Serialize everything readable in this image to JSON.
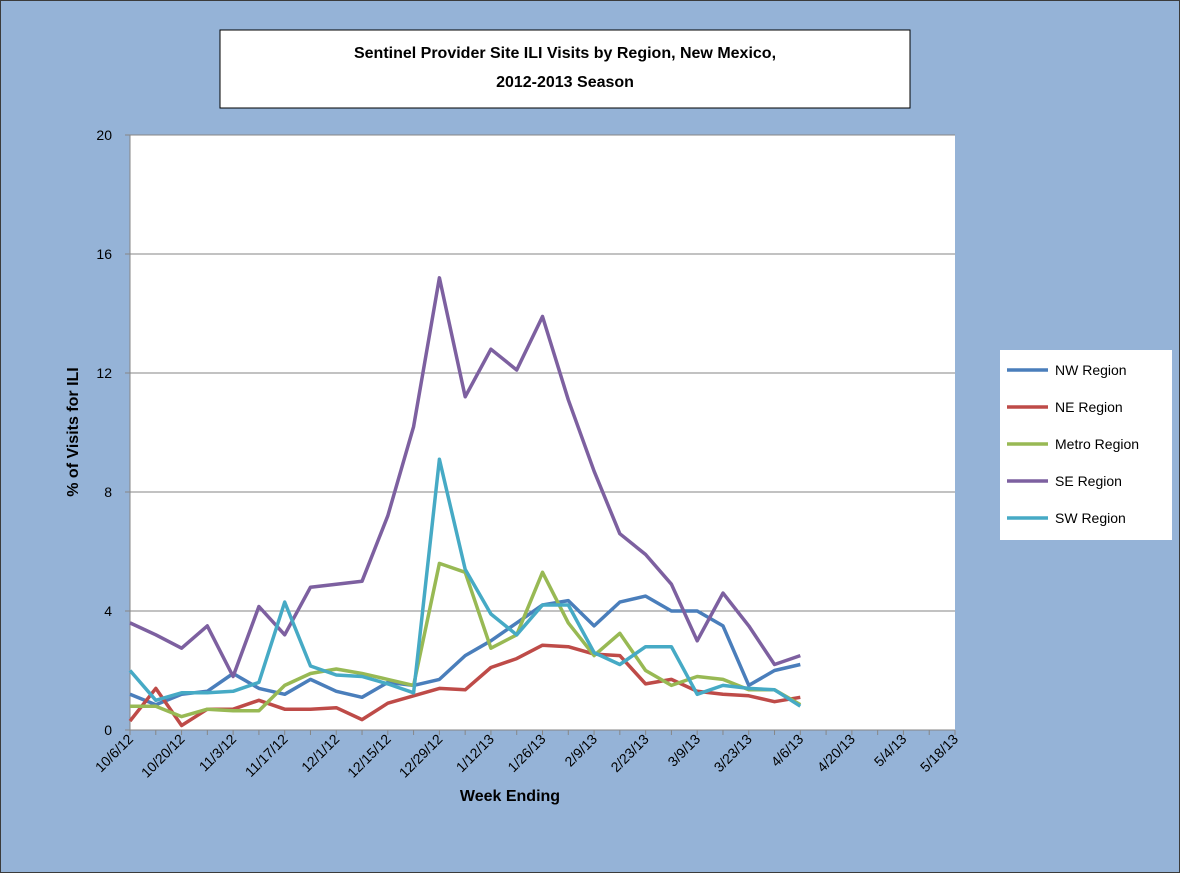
{
  "chart_data": {
    "type": "line",
    "title": "Sentinel Provider Site ILI Visits by Region, New Mexico,",
    "subtitle": "2012-2013 Season",
    "x_label": "Week Ending",
    "y_label": "% of Visits  for ILI",
    "categories": [
      "10/6/12",
      null,
      "10/20/12",
      null,
      "11/3/12",
      null,
      "11/17/12",
      null,
      "12/1/12",
      null,
      "12/15/12",
      null,
      "12/29/12",
      null,
      "1/12/13",
      null,
      "1/26/13",
      null,
      "2/9/13",
      null,
      "2/23/13",
      null,
      "3/9/13",
      null,
      "3/23/13",
      null,
      "4/6/13",
      null,
      "4/20/13",
      null,
      "5/4/13",
      null,
      "5/18/13"
    ],
    "ylim": [
      0,
      20
    ],
    "yticks": [
      0,
      4,
      8,
      12,
      16,
      20
    ],
    "grid": true,
    "legend": "right",
    "series": [
      {
        "name": "NW Region",
        "color": "#4A7EBB",
        "values": [
          1.2,
          0.85,
          1.2,
          1.3,
          1.9,
          1.4,
          1.2,
          1.7,
          1.3,
          1.1,
          1.6,
          1.5,
          1.7,
          2.5,
          3.0,
          3.6,
          4.2,
          4.35,
          3.5,
          4.3,
          4.5,
          4.0,
          4.0,
          3.5,
          1.5,
          2.0,
          2.2,
          null,
          null,
          null,
          null,
          null,
          null
        ]
      },
      {
        "name": "NE Region",
        "color": "#BE4B48",
        "values": [
          0.3,
          1.4,
          0.15,
          0.7,
          0.7,
          1.0,
          0.7,
          0.7,
          0.75,
          0.35,
          0.9,
          1.15,
          1.4,
          1.35,
          2.1,
          2.4,
          2.85,
          2.8,
          2.55,
          2.5,
          1.55,
          1.7,
          1.3,
          1.2,
          1.15,
          0.95,
          1.1,
          null,
          null,
          null,
          null,
          null,
          null
        ]
      },
      {
        "name": "Metro Region",
        "color": "#98B954",
        "values": [
          0.8,
          0.8,
          0.45,
          0.7,
          0.65,
          0.65,
          1.5,
          1.9,
          2.05,
          1.9,
          1.7,
          1.5,
          5.6,
          5.3,
          2.75,
          3.2,
          5.3,
          3.6,
          2.5,
          3.25,
          2.0,
          1.5,
          1.8,
          1.7,
          1.35,
          1.35,
          0.85,
          null,
          null,
          null,
          null,
          null,
          null
        ]
      },
      {
        "name": "SE Region",
        "color": "#7D60A0",
        "values": [
          3.6,
          3.2,
          2.75,
          3.5,
          1.8,
          4.15,
          3.2,
          4.8,
          4.9,
          5.0,
          7.2,
          10.2,
          15.2,
          11.2,
          12.8,
          12.1,
          13.9,
          11.1,
          8.7,
          6.6,
          5.9,
          4.9,
          3.0,
          4.6,
          3.5,
          2.2,
          2.5,
          null,
          null,
          null,
          null,
          null,
          null
        ]
      },
      {
        "name": "SW Region",
        "color": "#46AAC5",
        "values": [
          2.0,
          1.0,
          1.25,
          1.25,
          1.3,
          1.6,
          4.3,
          2.15,
          1.85,
          1.8,
          1.55,
          1.25,
          9.1,
          5.4,
          3.9,
          3.2,
          4.2,
          4.2,
          2.6,
          2.2,
          2.8,
          2.8,
          1.2,
          1.5,
          1.4,
          1.35,
          0.8,
          null,
          null,
          null,
          null,
          null,
          null
        ]
      }
    ]
  }
}
